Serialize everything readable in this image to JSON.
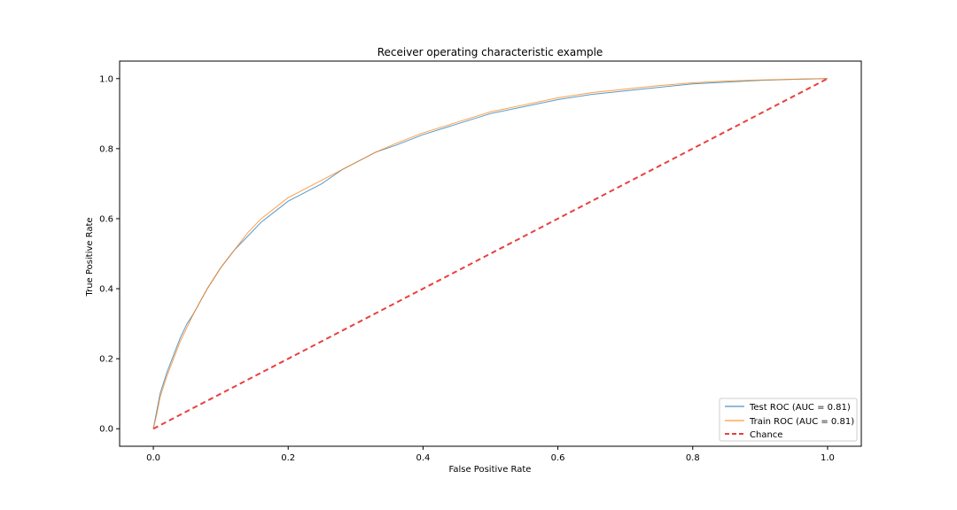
{
  "chart_data": {
    "type": "line",
    "title": "Receiver operating characteristic example",
    "xlabel": "False Positive Rate",
    "ylabel": "True Positive Rate",
    "xlim": [
      -0.05,
      1.05
    ],
    "ylim": [
      -0.05,
      1.05
    ],
    "xticks": [
      0.0,
      0.2,
      0.4,
      0.6,
      0.8,
      1.0
    ],
    "yticks": [
      0.0,
      0.2,
      0.4,
      0.6,
      0.8,
      1.0
    ],
    "xtick_labels": [
      "0.0",
      "0.2",
      "0.4",
      "0.6",
      "0.8",
      "1.0"
    ],
    "ytick_labels": [
      "0.0",
      "0.2",
      "0.4",
      "0.6",
      "0.8",
      "1.0"
    ],
    "grid": false,
    "legend_position": "bottom-right",
    "series": [
      {
        "name": "Test ROC (AUC = 0.81)",
        "color": "#1f77b4",
        "style": "solid",
        "x": [
          0.0,
          0.005,
          0.01,
          0.02,
          0.03,
          0.04,
          0.05,
          0.06,
          0.08,
          0.1,
          0.12,
          0.14,
          0.16,
          0.18,
          0.2,
          0.22,
          0.25,
          0.28,
          0.3,
          0.33,
          0.36,
          0.4,
          0.45,
          0.5,
          0.55,
          0.6,
          0.65,
          0.7,
          0.75,
          0.8,
          0.85,
          0.9,
          0.95,
          1.0
        ],
        "y": [
          0.0,
          0.05,
          0.1,
          0.16,
          0.21,
          0.26,
          0.3,
          0.33,
          0.4,
          0.46,
          0.51,
          0.55,
          0.59,
          0.62,
          0.65,
          0.67,
          0.7,
          0.74,
          0.76,
          0.79,
          0.81,
          0.84,
          0.87,
          0.9,
          0.92,
          0.94,
          0.955,
          0.965,
          0.975,
          0.985,
          0.99,
          0.995,
          0.998,
          1.0
        ]
      },
      {
        "name": "Train ROC (AUC = 0.81)",
        "color": "#ff7f0e",
        "style": "solid",
        "x": [
          0.0,
          0.005,
          0.01,
          0.02,
          0.03,
          0.04,
          0.05,
          0.06,
          0.08,
          0.1,
          0.12,
          0.14,
          0.16,
          0.18,
          0.2,
          0.22,
          0.25,
          0.28,
          0.3,
          0.33,
          0.36,
          0.4,
          0.45,
          0.5,
          0.55,
          0.6,
          0.65,
          0.7,
          0.75,
          0.8,
          0.85,
          0.9,
          0.95,
          1.0
        ],
        "y": [
          0.0,
          0.04,
          0.09,
          0.15,
          0.2,
          0.25,
          0.29,
          0.33,
          0.4,
          0.46,
          0.51,
          0.56,
          0.6,
          0.63,
          0.66,
          0.68,
          0.71,
          0.74,
          0.76,
          0.79,
          0.815,
          0.845,
          0.875,
          0.905,
          0.925,
          0.945,
          0.96,
          0.97,
          0.98,
          0.988,
          0.993,
          0.996,
          0.998,
          1.0
        ]
      },
      {
        "name": "Chance",
        "color": "#e84040",
        "style": "dashed",
        "x": [
          0.0,
          1.0
        ],
        "y": [
          0.0,
          1.0
        ]
      }
    ]
  }
}
